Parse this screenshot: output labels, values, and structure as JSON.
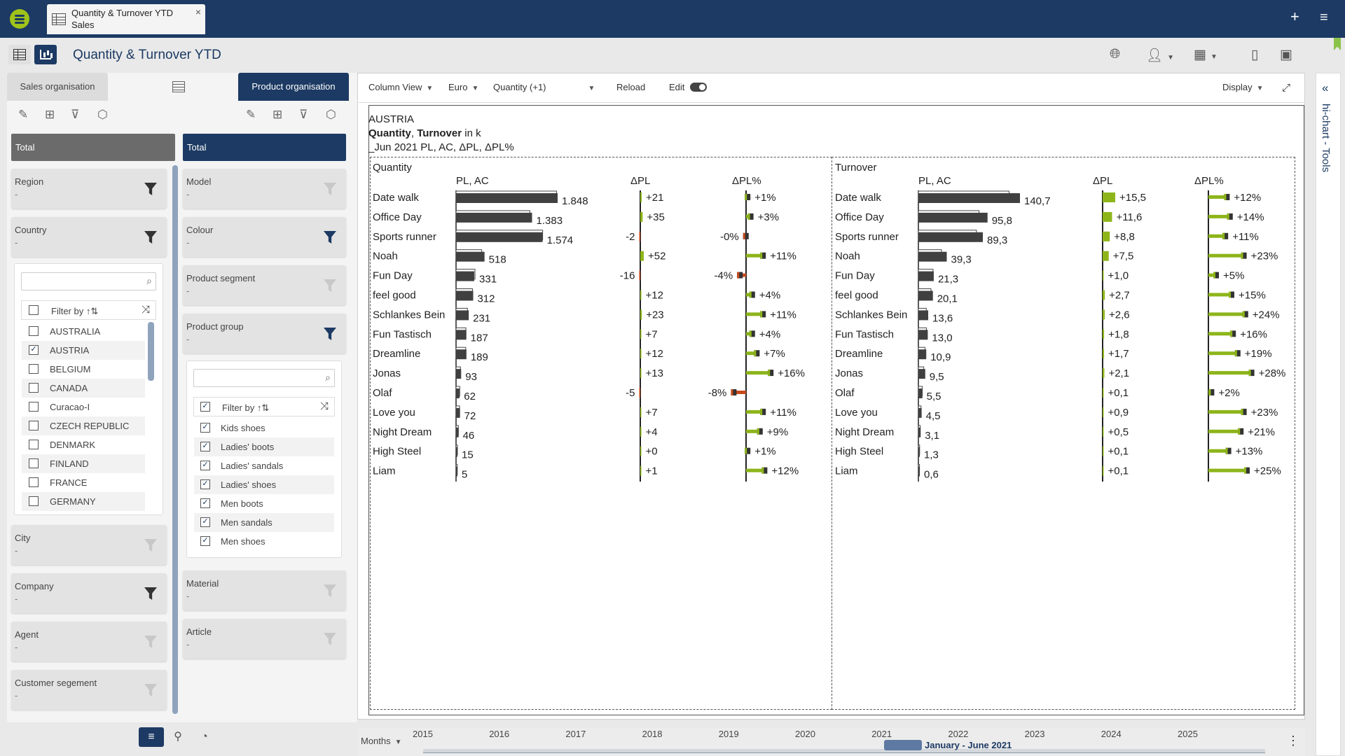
{
  "app": {
    "doc_tab": {
      "title": "Quantity & Turnover YTD",
      "subtitle": "Sales",
      "close": "×"
    },
    "page_title": "Quantity & Turnover YTD"
  },
  "left": {
    "tab_sales": "Sales organisation",
    "tab_product": "Product organisation",
    "total": "Total",
    "sales_filters": [
      {
        "label": "Region",
        "value": "-",
        "active": true
      },
      {
        "label": "Country",
        "value": "-",
        "active": true
      }
    ],
    "sales_filters_lower": [
      {
        "label": "City",
        "value": "-",
        "active": false
      },
      {
        "label": "Company",
        "value": "-",
        "active": true
      },
      {
        "label": "Agent",
        "value": "-",
        "active": false
      },
      {
        "label": "Customer segement",
        "value": "-",
        "active": false
      }
    ],
    "country_list": {
      "filter_label": "Filter by ↑⇅",
      "items": [
        {
          "name": "AUSTRALIA",
          "checked": false
        },
        {
          "name": "AUSTRIA",
          "checked": true
        },
        {
          "name": "BELGIUM",
          "checked": false
        },
        {
          "name": "CANADA",
          "checked": false
        },
        {
          "name": "Curacao-I",
          "checked": false
        },
        {
          "name": "CZECH REPUBLIC",
          "checked": false
        },
        {
          "name": "DENMARK",
          "checked": false
        },
        {
          "name": "FINLAND",
          "checked": false
        },
        {
          "name": "FRANCE",
          "checked": false
        },
        {
          "name": "GERMANY",
          "checked": false
        }
      ]
    },
    "product_filters": [
      {
        "label": "Model",
        "value": "-",
        "active": false
      },
      {
        "label": "Colour",
        "value": "-",
        "active": true
      },
      {
        "label": "Product segment",
        "value": "-",
        "active": false
      },
      {
        "label": "Product group",
        "value": "-",
        "active": true
      }
    ],
    "product_filters_lower": [
      {
        "label": "Material",
        "value": "-",
        "active": false
      },
      {
        "label": "Article",
        "value": "-",
        "active": false
      }
    ],
    "group_list": {
      "filter_label": "Filter by ↑⇅",
      "items": [
        "Kids shoes",
        "Ladies' boots",
        "Ladies' sandals",
        "Ladies' shoes",
        "Men boots",
        "Men sandals",
        "Men shoes"
      ]
    }
  },
  "toolbar": {
    "column_view": "Column View",
    "currency": "Euro",
    "measure": "Quantity (+1)",
    "reload": "Reload",
    "edit": "Edit",
    "display": "Display"
  },
  "report": {
    "country": "AUSTRIA",
    "measures_bold1": "Quantity",
    "measures_sep": ",",
    "measures_bold2": "Turnover",
    "measures_unit": "in k",
    "period_line": "_Jun 2021 PL, AC, ΔPL, ΔPL%"
  },
  "colors": {
    "ac": "#404040",
    "positive": "#8db51a",
    "negative": "#c84a1c",
    "brand": "#1c3a63"
  },
  "chart_data": [
    {
      "type": "bar",
      "title": "Quantity",
      "columns": [
        "PL, AC",
        "ΔPL",
        "ΔPL%"
      ],
      "categories": [
        "Date walk",
        "Office Day",
        "Sports runner",
        "Noah",
        "Fun Day",
        "feel good",
        "Schlankes Bein",
        "Fun Tastisch",
        "Dreamline",
        "Jonas",
        "Olaf",
        "Love you",
        "Night Dream",
        "High Steel",
        "Liam"
      ],
      "ac": [
        1848,
        1383,
        1574,
        518,
        331,
        312,
        231,
        187,
        189,
        93,
        62,
        72,
        46,
        15,
        5
      ],
      "ac_labels": [
        "1.848",
        "1.383",
        "1.574",
        "518",
        "331",
        "312",
        "231",
        "187",
        "189",
        "93",
        "62",
        "72",
        "46",
        "15",
        "5"
      ],
      "dpl": [
        21,
        35,
        -2,
        52,
        -16,
        12,
        23,
        7,
        12,
        13,
        -5,
        7,
        4,
        0,
        1
      ],
      "dpl_labels": [
        "+21",
        "+35",
        "-2",
        "+52",
        "-16",
        "+12",
        "+23",
        "+7",
        "+12",
        "+13",
        "-5",
        "+7",
        "+4",
        "+0",
        "+1"
      ],
      "dplp": [
        1,
        3,
        -0.1,
        11,
        -4,
        4,
        11,
        4,
        7,
        16,
        -8,
        11,
        9,
        1,
        12
      ],
      "dplp_labels": [
        "+1%",
        "+3%",
        "-0%",
        "+11%",
        "-4%",
        "+4%",
        "+11%",
        "+4%",
        "+7%",
        "+16%",
        "-8%",
        "+11%",
        "+9%",
        "+1%",
        "+12%"
      ]
    },
    {
      "type": "bar",
      "title": "Turnover",
      "columns": [
        "PL, AC",
        "ΔPL",
        "ΔPL%"
      ],
      "categories": [
        "Date walk",
        "Office Day",
        "Sports runner",
        "Noah",
        "Fun Day",
        "feel good",
        "Schlankes Bein",
        "Fun Tastisch",
        "Dreamline",
        "Jonas",
        "Olaf",
        "Love you",
        "Night Dream",
        "High Steel",
        "Liam"
      ],
      "ac": [
        140.7,
        95.8,
        89.3,
        39.3,
        21.3,
        20.1,
        13.6,
        13.0,
        10.9,
        9.5,
        5.5,
        4.5,
        3.1,
        1.3,
        0.6
      ],
      "ac_labels": [
        "140,7",
        "95,8",
        "89,3",
        "39,3",
        "21,3",
        "20,1",
        "13,6",
        "13,0",
        "10,9",
        "9,5",
        "5,5",
        "4,5",
        "3,1",
        "1,3",
        "0,6"
      ],
      "dpl": [
        15.5,
        11.6,
        8.8,
        7.5,
        1.0,
        2.7,
        2.6,
        1.8,
        1.7,
        2.1,
        0.1,
        0.9,
        0.5,
        0.1,
        0.1
      ],
      "dpl_labels": [
        "+15,5",
        "+11,6",
        "+8,8",
        "+7,5",
        "+1,0",
        "+2,7",
        "+2,6",
        "+1,8",
        "+1,7",
        "+2,1",
        "+0,1",
        "+0,9",
        "+0,5",
        "+0,1",
        "+0,1"
      ],
      "dplp": [
        12,
        14,
        11,
        23,
        5,
        15,
        24,
        16,
        19,
        28,
        2,
        23,
        21,
        13,
        25
      ],
      "dplp_labels": [
        "+12%",
        "+14%",
        "+11%",
        "+23%",
        "+5%",
        "+15%",
        "+24%",
        "+16%",
        "+19%",
        "+28%",
        "+2%",
        "+23%",
        "+21%",
        "+13%",
        "+25%"
      ]
    }
  ],
  "right": {
    "tools_title": "hi-chart - Tools"
  },
  "timeline": {
    "unit": "Months",
    "years": [
      "2015",
      "2016",
      "2017",
      "2018",
      "2019",
      "2020",
      "2021",
      "2022",
      "2023",
      "2024",
      "2025"
    ],
    "selection": "January - June 2021"
  }
}
